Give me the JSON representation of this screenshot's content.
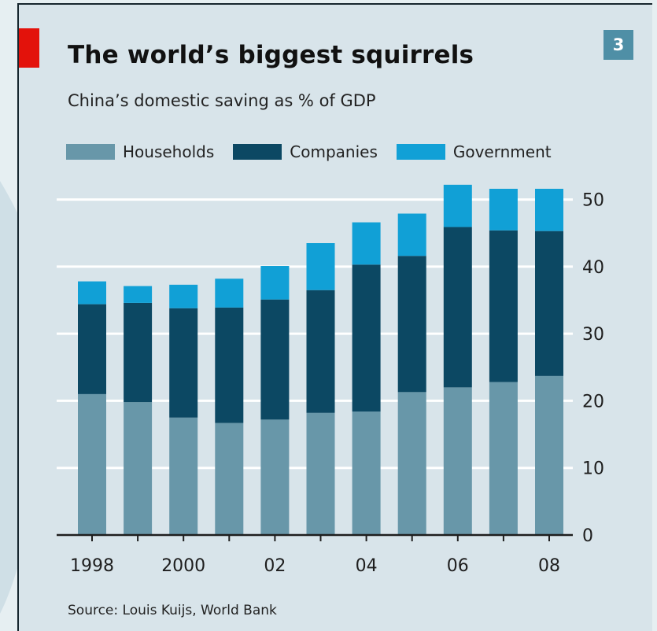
{
  "title": "The world’s biggest squirrels",
  "subtitle": "China’s domestic saving as % of GDP",
  "badge": "3",
  "source": "Source: Louis Kuijs, World Bank",
  "colors": {
    "background": "#d8e4ea",
    "households": "#6897a9",
    "companies": "#0c4863",
    "government": "#11a0d6",
    "accent": "#e3120b",
    "badge": "#4f8fa6"
  },
  "chart_data": {
    "type": "bar",
    "stacked": true,
    "categories": [
      "1998",
      "1999",
      "2000",
      "2001",
      "2002",
      "2003",
      "2004",
      "2005",
      "2006",
      "2007",
      "2008"
    ],
    "x_tick_labels": [
      "1998",
      "",
      "2000",
      "",
      "02",
      "",
      "04",
      "",
      "06",
      "",
      "08"
    ],
    "series": [
      {
        "name": "Households",
        "values": [
          21,
          19.8,
          17.5,
          16.7,
          17.2,
          18.2,
          18.4,
          21.3,
          22,
          22.8,
          23.7
        ]
      },
      {
        "name": "Companies",
        "values": [
          13.4,
          14.8,
          16.3,
          17.2,
          17.9,
          18.3,
          21.9,
          20.3,
          23.9,
          22.6,
          21.6
        ]
      },
      {
        "name": "Government",
        "values": [
          3.4,
          2.5,
          3.5,
          4.3,
          5,
          7,
          6.3,
          6.3,
          6.3,
          6.2,
          6.3
        ]
      }
    ],
    "yticks": [
      0,
      10,
      20,
      30,
      40,
      50
    ],
    "ylim": [
      0,
      53
    ],
    "y_axis_side": "right",
    "grid": true,
    "legend_position": "top",
    "xlabel": "",
    "ylabel": ""
  }
}
